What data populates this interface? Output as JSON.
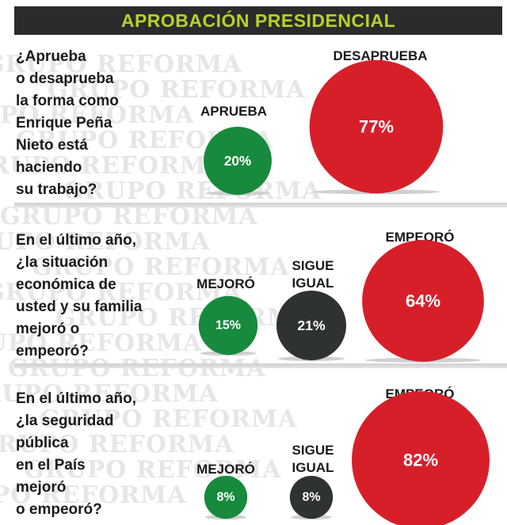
{
  "header": {
    "title": "APROBACIÓN PRESIDENCIAL"
  },
  "watermark": "GRUPO REFORMA",
  "colors": {
    "green": "#178a3e",
    "red": "#d71f2a",
    "gray": "#2e3230",
    "header_bg": "#2b2b2b",
    "header_text": "#b5d12a"
  },
  "chart_data": [
    {
      "type": "bubble",
      "question": "¿Aprueba\no desaprueba\nla forma como\nEnrique Peña\nNieto está\nhaciendo\nsu trabajo?",
      "categories": [
        "APRUEBA",
        "DESAPRUEBA"
      ],
      "values": [
        20,
        77
      ],
      "labels": [
        "20%",
        "77%"
      ],
      "colors": [
        "#178a3e",
        "#d71f2a"
      ]
    },
    {
      "type": "bubble",
      "question": "En el último año,\n¿la situación\neconómica de\nusted y su familia\nmejoró o\nempeoró?",
      "categories": [
        "MEJORÓ",
        "SIGUE\nIGUAL",
        "EMPEORÓ"
      ],
      "values": [
        15,
        21,
        64
      ],
      "labels": [
        "15%",
        "21%",
        "64%"
      ],
      "colors": [
        "#178a3e",
        "#2e3230",
        "#d71f2a"
      ]
    },
    {
      "type": "bubble",
      "question": "En el último año,\n¿la seguridad\npública\nen el País\nmejoró\no empeoró?",
      "categories": [
        "MEJORÓ",
        "SIGUE\nIGUAL",
        "EMPEORÓ"
      ],
      "values": [
        8,
        8,
        82
      ],
      "labels": [
        "8%",
        "8%",
        "82%"
      ],
      "colors": [
        "#178a3e",
        "#2e3230",
        "#d71f2a"
      ]
    }
  ]
}
